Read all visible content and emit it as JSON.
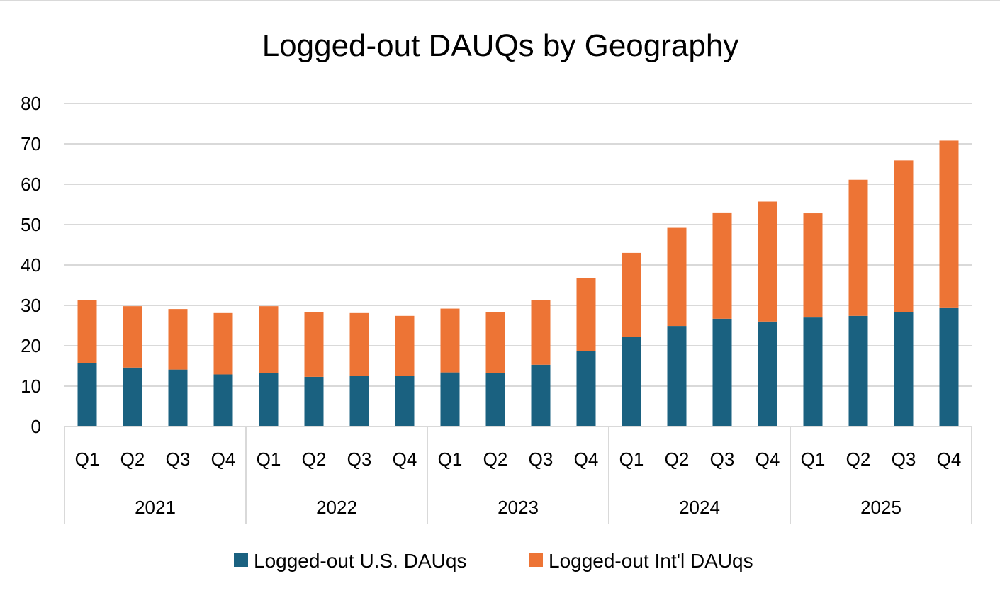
{
  "chart_data": {
    "type": "bar",
    "stacked": true,
    "title": "Logged-out DAUQs by Geography",
    "xlabel": "",
    "ylabel": "",
    "ylim": [
      0,
      80
    ],
    "y_ticks": [
      0,
      10,
      20,
      30,
      40,
      50,
      60,
      70,
      80
    ],
    "grid": true,
    "legend_position": "bottom",
    "groups": [
      "2021",
      "2022",
      "2023",
      "2024",
      "2025"
    ],
    "quarters": [
      "Q1",
      "Q2",
      "Q3",
      "Q4"
    ],
    "categories": [
      "2021 Q1",
      "2021 Q2",
      "2021 Q3",
      "2021 Q4",
      "2022 Q1",
      "2022 Q2",
      "2022 Q3",
      "2022 Q4",
      "2023 Q1",
      "2023 Q2",
      "2023 Q3",
      "2023 Q4",
      "2024 Q1",
      "2024 Q2",
      "2024 Q3",
      "2024 Q4",
      "2025 Q1",
      "2025 Q2",
      "2025 Q3",
      "2025 Q4"
    ],
    "series": [
      {
        "name": "Logged-out U.S. DAUqs",
        "color": "#1a6180",
        "values": [
          15.7,
          14.6,
          14.1,
          12.9,
          13.2,
          12.3,
          12.5,
          12.5,
          13.4,
          13.2,
          15.3,
          18.6,
          22.2,
          24.9,
          26.7,
          26.0,
          27.0,
          27.4,
          28.4,
          29.5
        ]
      },
      {
        "name": "Logged-out Int'l DAUqs",
        "color": "#ed7435",
        "values": [
          15.7,
          15.2,
          15.0,
          15.2,
          16.6,
          16.0,
          15.6,
          14.9,
          15.8,
          15.1,
          16.0,
          18.1,
          20.8,
          24.3,
          26.3,
          29.7,
          25.8,
          33.7,
          37.5,
          41.3
        ]
      }
    ]
  }
}
